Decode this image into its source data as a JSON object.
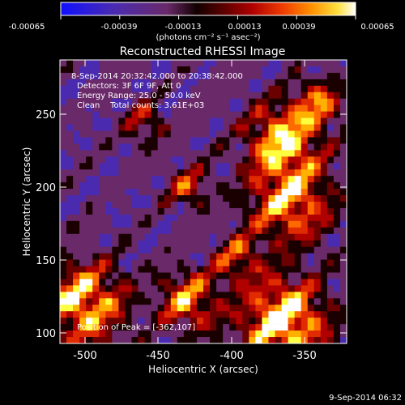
{
  "colorbar": {
    "ticks": [
      "-0.00065",
      "-0.00039",
      "-0.00013",
      "0.00013",
      "0.00039",
      "0.00065"
    ],
    "unit_label": "(photons cm⁻² s⁻¹ asec⁻²)",
    "palette": [
      "#1010ff",
      "#4a2bb0",
      "#6a2a6a",
      "#1a0000",
      "#6a0000",
      "#b00000",
      "#e02a00",
      "#ff6a00",
      "#ffb000",
      "#ffff40",
      "#ffffff"
    ]
  },
  "plot": {
    "title": "Reconstructed RHESSI Image",
    "info": [
      "8-Sep-2014 20:32:42.000 to 20:38:42.000",
      "Detectors: 3F 6F 9F, Att 0",
      "Energy Range: 25.0 - 50.0 keV",
      "Clean    Total counts: 3.61E+03"
    ],
    "peak_label": "Position of Peak = [-362,107]",
    "xlabel": "Heliocentric X (arcsec)",
    "ylabel": "Heliocentric Y (arcsec)",
    "x_ticks": [
      "-500",
      "-450",
      "-400",
      "-350"
    ],
    "y_ticks": [
      "100",
      "150",
      "200",
      "250"
    ],
    "xlim": [
      -517,
      -327
    ],
    "ylim": [
      93,
      283
    ]
  },
  "footer": {
    "timestamp": "9-Sep-2014 06:32"
  }
}
